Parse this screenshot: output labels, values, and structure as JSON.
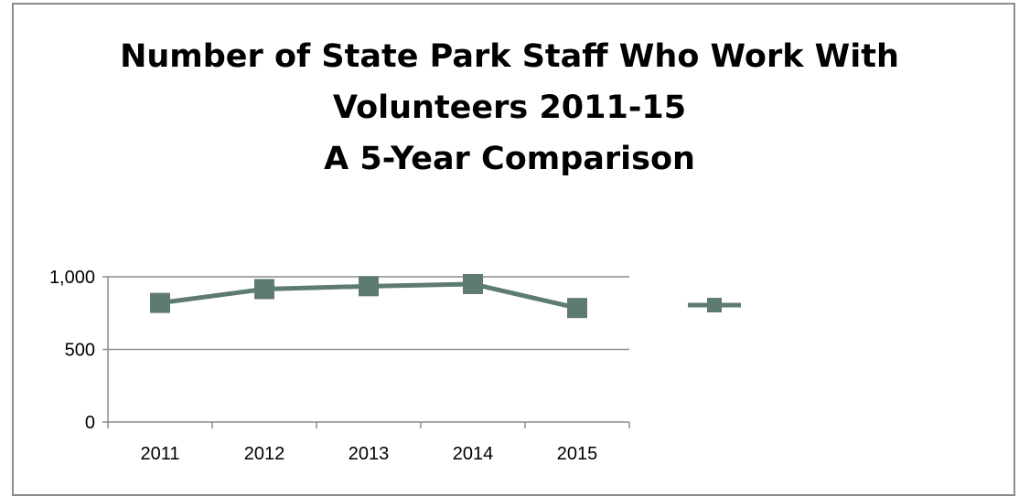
{
  "chart_data": {
    "type": "line",
    "title_lines": [
      "Number of State Park Staff Who Work With",
      "Volunteers 2011-15",
      "A 5-Year Comparison"
    ],
    "categories": [
      "2011",
      "2012",
      "2013",
      "2014",
      "2015"
    ],
    "series": [
      {
        "values": [
          820,
          915,
          935,
          950,
          785
        ],
        "color": "#5d7b6f",
        "marker": "square"
      }
    ],
    "ylim": [
      0,
      1000
    ],
    "yticks": [
      0,
      500,
      1000
    ],
    "ytick_labels": [
      "0",
      "500",
      "1,000"
    ],
    "grid": true,
    "legend": "right",
    "xlabel": "",
    "ylabel": ""
  }
}
